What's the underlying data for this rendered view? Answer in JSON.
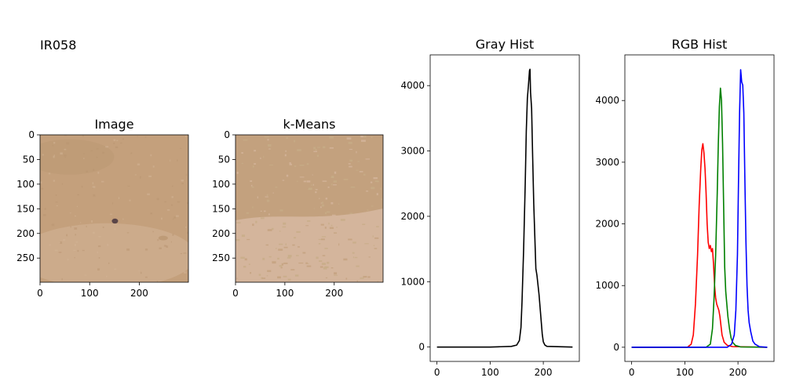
{
  "figure": {
    "suptitle": "IR058"
  },
  "chart_data": [
    {
      "type": "image",
      "title": "Image",
      "xticks": [
        "0",
        "100",
        "200"
      ],
      "yticks": [
        "0",
        "50",
        "100",
        "150",
        "200",
        "250"
      ],
      "xlim": [
        0,
        299
      ],
      "ylim": [
        299,
        0
      ],
      "colors": {
        "base": "#c4a07c",
        "light": "#d3b597",
        "dark": "#b8946f",
        "lesion": "#5a4548"
      }
    },
    {
      "type": "image",
      "title": "k-Means",
      "xticks": [
        "0",
        "100",
        "200"
      ],
      "yticks": [
        "0",
        "50",
        "100",
        "150",
        "200",
        "250"
      ],
      "xlim": [
        0,
        299
      ],
      "ylim": [
        299,
        0
      ],
      "colors": {
        "cluster_1": "#c3a17e",
        "cluster_2": "#d4b59c",
        "cluster_3": "#c7ac87"
      }
    },
    {
      "type": "line",
      "title": "Gray Hist",
      "xticks": [
        "0",
        "100",
        "200"
      ],
      "yticks": [
        "0",
        "1000",
        "2000",
        "3000",
        "4000"
      ],
      "xlim": [
        -12.75,
        267.75
      ],
      "ylim": [
        -220,
        4470
      ],
      "series": [
        {
          "color": "#000000",
          "points": [
            [
              0,
              0
            ],
            [
              100,
              0
            ],
            [
              120,
              5
            ],
            [
              140,
              10
            ],
            [
              150,
              30
            ],
            [
              155,
              100
            ],
            [
              158,
              300
            ],
            [
              160,
              700
            ],
            [
              163,
              1500
            ],
            [
              166,
              2500
            ],
            [
              168,
              3300
            ],
            [
              170,
              3800
            ],
            [
              172,
              4000
            ],
            [
              174,
              4230
            ],
            [
              175,
              4250
            ],
            [
              176,
              3900
            ],
            [
              178,
              3650
            ],
            [
              180,
              2900
            ],
            [
              182,
              2200
            ],
            [
              184,
              1700
            ],
            [
              186,
              1200
            ],
            [
              188,
              1100
            ],
            [
              190,
              950
            ],
            [
              192,
              800
            ],
            [
              194,
              600
            ],
            [
              196,
              400
            ],
            [
              198,
              200
            ],
            [
              200,
              80
            ],
            [
              203,
              30
            ],
            [
              207,
              10
            ],
            [
              255,
              0
            ]
          ]
        }
      ]
    },
    {
      "type": "line",
      "title": "RGB Hist",
      "xticks": [
        "0",
        "100",
        "200"
      ],
      "yticks": [
        "0",
        "1000",
        "2000",
        "3000",
        "4000"
      ],
      "xlim": [
        -12.75,
        267.75
      ],
      "ylim": [
        -230,
        4740
      ],
      "series": [
        {
          "color": "#ff0000",
          "points": [
            [
              0,
              0
            ],
            [
              105,
              0
            ],
            [
              112,
              50
            ],
            [
              116,
              200
            ],
            [
              120,
              700
            ],
            [
              124,
              1500
            ],
            [
              127,
              2300
            ],
            [
              130,
              2900
            ],
            [
              132,
              3200
            ],
            [
              134,
              3300
            ],
            [
              136,
              3150
            ],
            [
              138,
              2900
            ],
            [
              140,
              2500
            ],
            [
              142,
              2000
            ],
            [
              144,
              1700
            ],
            [
              146,
              1600
            ],
            [
              148,
              1650
            ],
            [
              150,
              1550
            ],
            [
              152,
              1600
            ],
            [
              154,
              1350
            ],
            [
              156,
              1000
            ],
            [
              158,
              800
            ],
            [
              160,
              700
            ],
            [
              162,
              650
            ],
            [
              164,
              600
            ],
            [
              166,
              500
            ],
            [
              168,
              350
            ],
            [
              170,
              200
            ],
            [
              174,
              80
            ],
            [
              180,
              30
            ],
            [
              190,
              10
            ],
            [
              255,
              0
            ]
          ]
        },
        {
          "color": "#008000",
          "points": [
            [
              0,
              0
            ],
            [
              140,
              0
            ],
            [
              148,
              50
            ],
            [
              152,
              300
            ],
            [
              155,
              800
            ],
            [
              158,
              1500
            ],
            [
              161,
              2500
            ],
            [
              163,
              3300
            ],
            [
              165,
              3900
            ],
            [
              167,
              4200
            ],
            [
              169,
              4000
            ],
            [
              171,
              3300
            ],
            [
              173,
              2300
            ],
            [
              175,
              1300
            ],
            [
              177,
              900
            ],
            [
              179,
              700
            ],
            [
              181,
              500
            ],
            [
              184,
              300
            ],
            [
              187,
              150
            ],
            [
              190,
              80
            ],
            [
              195,
              30
            ],
            [
              205,
              5
            ],
            [
              255,
              0
            ]
          ]
        },
        {
          "color": "#0000ff",
          "points": [
            [
              0,
              0
            ],
            [
              180,
              0
            ],
            [
              188,
              50
            ],
            [
              193,
              200
            ],
            [
              196,
              600
            ],
            [
              199,
              1500
            ],
            [
              201,
              2700
            ],
            [
              203,
              3800
            ],
            [
              205,
              4500
            ],
            [
              207,
              4300
            ],
            [
              209,
              4250
            ],
            [
              211,
              3800
            ],
            [
              213,
              2700
            ],
            [
              215,
              1700
            ],
            [
              217,
              1000
            ],
            [
              219,
              600
            ],
            [
              221,
              400
            ],
            [
              224,
              250
            ],
            [
              228,
              100
            ],
            [
              232,
              50
            ],
            [
              240,
              10
            ],
            [
              255,
              0
            ]
          ]
        }
      ]
    }
  ]
}
